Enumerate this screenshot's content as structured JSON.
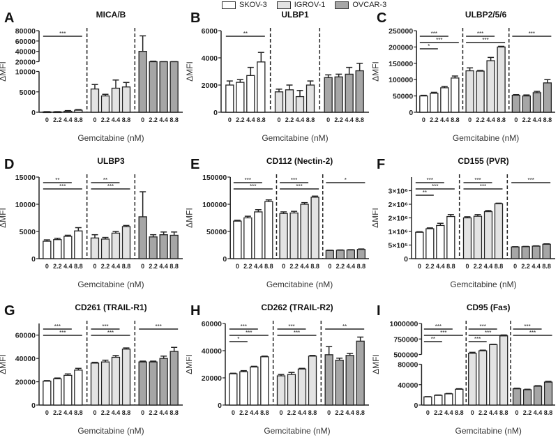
{
  "legend": [
    {
      "name": "SKOV-3",
      "color": "#ffffff"
    },
    {
      "name": "IGROV-1",
      "color": "#e3e3e3"
    },
    {
      "name": "OVCAR-3",
      "color": "#a6a6a6"
    }
  ],
  "chart_data": [
    {
      "type": "bar",
      "letter": "A",
      "title": "MICA/B",
      "ylabel": "ΔMFI",
      "xlabel": "Gemcitabine (nM)",
      "categories": [
        "0",
        "2.2",
        "4.4",
        "8.8"
      ],
      "ylim": [
        0,
        80000
      ],
      "ybreak": [
        10000,
        20000
      ],
      "yticks": [
        0,
        5000,
        10000,
        20000,
        40000,
        60000,
        80000
      ],
      "ytick_labels": [
        "0",
        "5000",
        "10000",
        "20000",
        "40000",
        "60000",
        "80000"
      ],
      "series": [
        {
          "name": "SKOV-3",
          "values": [
            100,
            100,
            250,
            500
          ],
          "errors": [
            50,
            50,
            150,
            150
          ]
        },
        {
          "name": "IGROV-1",
          "values": [
            5700,
            4000,
            5900,
            6200
          ],
          "errors": [
            1100,
            400,
            2000,
            1100
          ]
        },
        {
          "name": "OVCAR-3",
          "values": [
            40000,
            18000,
            17500,
            18000
          ],
          "errors": [
            30000,
            3000,
            500,
            1000
          ]
        }
      ],
      "significance": [
        {
          "group": 0,
          "from": 0,
          "to": 3,
          "label": "***"
        }
      ]
    },
    {
      "type": "bar",
      "letter": "B",
      "title": "ULBP1",
      "ylabel": "ΔMFI",
      "xlabel": "Gemcitabine (nM)",
      "categories": [
        "0",
        "2.2",
        "4.4",
        "8.8"
      ],
      "ylim": [
        0,
        6000
      ],
      "yticks": [
        0,
        2000,
        4000,
        6000
      ],
      "ytick_labels": [
        "0",
        "2000",
        "4000",
        "6000"
      ],
      "series": [
        {
          "name": "SKOV-3",
          "values": [
            2000,
            2200,
            2700,
            3700
          ],
          "errors": [
            300,
            200,
            600,
            700
          ]
        },
        {
          "name": "IGROV-1",
          "values": [
            1500,
            1650,
            1150,
            2000
          ],
          "errors": [
            200,
            350,
            450,
            300
          ]
        },
        {
          "name": "OVCAR-3",
          "values": [
            2550,
            2600,
            2800,
            3050
          ],
          "errors": [
            200,
            200,
            500,
            550
          ]
        }
      ],
      "significance": [
        {
          "group": 0,
          "from": 0,
          "to": 3,
          "label": "**"
        }
      ]
    },
    {
      "type": "bar",
      "letter": "C",
      "title": "ULBP2/5/6",
      "ylabel": "ΔMFI",
      "xlabel": "Gemcitabine (nM)",
      "categories": [
        "0",
        "2.2",
        "4.4",
        "8.8"
      ],
      "ylim": [
        0,
        250000
      ],
      "yticks": [
        0,
        50000,
        100000,
        150000,
        200000,
        250000
      ],
      "ytick_labels": [
        "0",
        "50000",
        "100000",
        "150000",
        "200000",
        "250000"
      ],
      "series": [
        {
          "name": "SKOV-3",
          "values": [
            50000,
            58000,
            75000,
            105000
          ],
          "errors": [
            2000,
            3000,
            4000,
            6000
          ]
        },
        {
          "name": "IGROV-1",
          "values": [
            127000,
            126000,
            158000,
            200000
          ],
          "errors": [
            9000,
            2000,
            10000,
            2000
          ]
        },
        {
          "name": "OVCAR-3",
          "values": [
            52000,
            50000,
            60000,
            90000
          ],
          "errors": [
            2000,
            3000,
            4000,
            10000
          ]
        }
      ],
      "significance": [
        {
          "group": 0,
          "from": 0,
          "to": 2,
          "label": "***"
        },
        {
          "group": 0,
          "from": 0,
          "to": 3,
          "label": "***"
        },
        {
          "group": 0,
          "from": 0,
          "to": 1,
          "label": "*"
        },
        {
          "group": 1,
          "from": 0,
          "to": 2,
          "label": "***"
        },
        {
          "group": 1,
          "from": 0,
          "to": 3,
          "label": "***"
        },
        {
          "group": 2,
          "from": 0,
          "to": 3,
          "label": "***"
        }
      ]
    },
    {
      "type": "bar",
      "letter": "D",
      "title": "ULBP3",
      "ylabel": "ΔMFI",
      "xlabel": "Gemcitabine (nM)",
      "categories": [
        "0",
        "2.2",
        "4.4",
        "8.8"
      ],
      "ylim": [
        0,
        15000
      ],
      "yticks": [
        0,
        5000,
        10000,
        15000
      ],
      "ytick_labels": [
        "0",
        "5000",
        "10000",
        "15000"
      ],
      "series": [
        {
          "name": "SKOV-3",
          "values": [
            3200,
            3500,
            4100,
            5100
          ],
          "errors": [
            250,
            250,
            200,
            600
          ]
        },
        {
          "name": "IGROV-1",
          "values": [
            3800,
            3600,
            4700,
            5900
          ],
          "errors": [
            600,
            300,
            300,
            200
          ]
        },
        {
          "name": "OVCAR-3",
          "values": [
            7700,
            4000,
            4400,
            4300
          ],
          "errors": [
            4600,
            400,
            500,
            600
          ]
        }
      ],
      "significance": [
        {
          "group": 0,
          "from": 0,
          "to": 2,
          "label": "**"
        },
        {
          "group": 0,
          "from": 0,
          "to": 3,
          "label": "***"
        },
        {
          "group": 1,
          "from": 0,
          "to": 2,
          "label": "**"
        },
        {
          "group": 1,
          "from": 0,
          "to": 3,
          "label": "***"
        }
      ]
    },
    {
      "type": "bar",
      "letter": "E",
      "title": "CD112 (Nectin-2)",
      "ylabel": "ΔMFI",
      "xlabel": "Gemcitabine (nM)",
      "categories": [
        "0",
        "2.2",
        "4.4",
        "8.8"
      ],
      "ylim": [
        0,
        150000
      ],
      "yticks": [
        0,
        50000,
        100000,
        150000
      ],
      "ytick_labels": [
        "0",
        "50000",
        "100000",
        "150000"
      ],
      "series": [
        {
          "name": "SKOV-3",
          "values": [
            69000,
            75000,
            86000,
            105000
          ],
          "errors": [
            1500,
            3000,
            4000,
            3000
          ]
        },
        {
          "name": "IGROV-1",
          "values": [
            83000,
            84000,
            100000,
            113000
          ],
          "errors": [
            3000,
            3000,
            3000,
            2000
          ]
        },
        {
          "name": "OVCAR-3",
          "values": [
            15000,
            15500,
            16000,
            17000
          ],
          "errors": [
            500,
            500,
            500,
            800
          ]
        }
      ],
      "significance": [
        {
          "group": 0,
          "from": 0,
          "to": 2,
          "label": "***"
        },
        {
          "group": 0,
          "from": 0,
          "to": 3,
          "label": "***"
        },
        {
          "group": 1,
          "from": 0,
          "to": 2,
          "label": "***"
        },
        {
          "group": 1,
          "from": 0,
          "to": 3,
          "label": "***"
        },
        {
          "group": 2,
          "from": 0,
          "to": 3,
          "label": "*"
        }
      ]
    },
    {
      "type": "bar",
      "letter": "F",
      "title": "CD155 (PVR)",
      "ylabel": "ΔMFI",
      "xlabel": "Gemcitabine (nM)",
      "categories": [
        "0",
        "2.2",
        "4.4",
        "8.8"
      ],
      "ylim": [
        0,
        3000000
      ],
      "yticks": [
        0,
        500000,
        1000000,
        1500000,
        2000000,
        2500000
      ],
      "ytick_labels": [
        "0",
        "5×10⁵",
        "1×10⁶",
        "2×10⁶",
        "2×10⁶",
        "3×10⁶"
      ],
      "series": [
        {
          "name": "SKOV-3",
          "values": [
            970000,
            1100000,
            1220000,
            1550000
          ],
          "errors": [
            20000,
            30000,
            80000,
            70000
          ]
        },
        {
          "name": "IGROV-1",
          "values": [
            1500000,
            1560000,
            1730000,
            2020000
          ],
          "errors": [
            40000,
            60000,
            40000,
            20000
          ]
        },
        {
          "name": "OVCAR-3",
          "values": [
            430000,
            440000,
            460000,
            530000
          ],
          "errors": [
            10000,
            10000,
            10000,
            15000
          ]
        }
      ],
      "significance": [
        {
          "group": 0,
          "from": 0,
          "to": 2,
          "label": "***"
        },
        {
          "group": 0,
          "from": 0,
          "to": 3,
          "label": "***"
        },
        {
          "group": 0,
          "from": 0,
          "to": 1,
          "label": "**"
        },
        {
          "group": 1,
          "from": 0,
          "to": 2,
          "label": "***"
        },
        {
          "group": 1,
          "from": 0,
          "to": 3,
          "label": "***"
        },
        {
          "group": 2,
          "from": 0,
          "to": 3,
          "label": "***"
        }
      ]
    },
    {
      "type": "bar",
      "letter": "G",
      "title": "CD261 (TRAIL-R1)",
      "ylabel": "ΔMFI",
      "xlabel": "Gemcitabine (nM)",
      "categories": [
        "0",
        "2.2",
        "4.4",
        "8.8"
      ],
      "ylim": [
        0,
        70000
      ],
      "yticks": [
        0,
        20000,
        40000,
        60000
      ],
      "ytick_labels": [
        "0",
        "20000",
        "40000",
        "60000"
      ],
      "series": [
        {
          "name": "SKOV-3",
          "values": [
            20500,
            22500,
            25500,
            30000
          ],
          "errors": [
            500,
            700,
            1200,
            1500
          ]
        },
        {
          "name": "IGROV-1",
          "values": [
            36000,
            37000,
            41000,
            48000
          ],
          "errors": [
            700,
            1500,
            1500,
            1000
          ]
        },
        {
          "name": "OVCAR-3",
          "values": [
            37000,
            37000,
            40000,
            46000
          ],
          "errors": [
            700,
            700,
            2000,
            3500
          ]
        }
      ],
      "significance": [
        {
          "group": 0,
          "from": 0,
          "to": 2,
          "label": "***"
        },
        {
          "group": 0,
          "from": 0,
          "to": 3,
          "label": "***"
        },
        {
          "group": 1,
          "from": 0,
          "to": 2,
          "label": "***"
        },
        {
          "group": 1,
          "from": 0,
          "to": 3,
          "label": "***"
        },
        {
          "group": 2,
          "from": 0,
          "to": 3,
          "label": "***"
        }
      ]
    },
    {
      "type": "bar",
      "letter": "H",
      "title": "CD262 (TRAIL-R2)",
      "ylabel": "ΔMFI",
      "xlabel": "Gemcitabine (nM)",
      "categories": [
        "0",
        "2.2",
        "4.4",
        "8.8"
      ],
      "ylim": [
        0,
        60000
      ],
      "yticks": [
        0,
        20000,
        40000,
        60000
      ],
      "ytick_labels": [
        "0",
        "20000",
        "40000",
        "60000"
      ],
      "series": [
        {
          "name": "SKOV-3",
          "values": [
            23000,
            24500,
            28000,
            35500
          ],
          "errors": [
            400,
            800,
            500,
            500
          ]
        },
        {
          "name": "IGROV-1",
          "values": [
            21500,
            22500,
            26500,
            36000
          ],
          "errors": [
            1000,
            1500,
            500,
            500
          ]
        },
        {
          "name": "OVCAR-3",
          "values": [
            37000,
            33000,
            36500,
            47000
          ],
          "errors": [
            6000,
            1500,
            1500,
            3000
          ]
        }
      ],
      "significance": [
        {
          "group": 0,
          "from": 0,
          "to": 2,
          "label": "***"
        },
        {
          "group": 0,
          "from": 0,
          "to": 3,
          "label": "***"
        },
        {
          "group": 0,
          "from": 0,
          "to": 1,
          "label": "*"
        },
        {
          "group": 1,
          "from": 0,
          "to": 2,
          "label": "***"
        },
        {
          "group": 1,
          "from": 0,
          "to": 3,
          "label": "***"
        },
        {
          "group": 2,
          "from": 0,
          "to": 3,
          "label": "**"
        }
      ]
    },
    {
      "type": "bar",
      "letter": "I",
      "title": "CD95 (Fas)",
      "ylabel": "ΔMFI",
      "xlabel": "Gemcitabine (nM)",
      "categories": [
        "0",
        "2.2",
        "4.4",
        "8.8"
      ],
      "ylim": [
        0,
        1000000
      ],
      "ybreak": [
        80000,
        500000
      ],
      "yticks": [
        0,
        40000,
        80000,
        500000,
        750000,
        1000000
      ],
      "ytick_labels": [
        "0",
        "40000",
        "80000",
        "500000",
        "750000",
        "1000000"
      ],
      "series": [
        {
          "name": "SKOV-3",
          "values": [
            16000,
            19000,
            22000,
            31000
          ],
          "errors": [
            500,
            700,
            700,
            1000
          ]
        },
        {
          "name": "IGROV-1",
          "values": [
            520000,
            560000,
            660000,
            800000
          ],
          "errors": [
            15000,
            10000,
            5000,
            15000
          ]
        },
        {
          "name": "OVCAR-3",
          "values": [
            32000,
            30000,
            37000,
            45000
          ],
          "errors": [
            1000,
            1000,
            1000,
            1500
          ]
        }
      ],
      "significance": [
        {
          "group": 0,
          "from": 0,
          "to": 2,
          "label": "***"
        },
        {
          "group": 0,
          "from": 0,
          "to": 3,
          "label": "***"
        },
        {
          "group": 0,
          "from": 0,
          "to": 1,
          "label": "**"
        },
        {
          "group": 1,
          "from": 0,
          "to": 2,
          "label": "***"
        },
        {
          "group": 1,
          "from": 0,
          "to": 3,
          "label": "***"
        },
        {
          "group": 1,
          "from": 0,
          "to": 1,
          "label": "***"
        },
        {
          "group": 2,
          "from": 0,
          "to": 2,
          "label": "***"
        },
        {
          "group": 2,
          "from": 0,
          "to": 3,
          "label": "***"
        }
      ]
    }
  ]
}
